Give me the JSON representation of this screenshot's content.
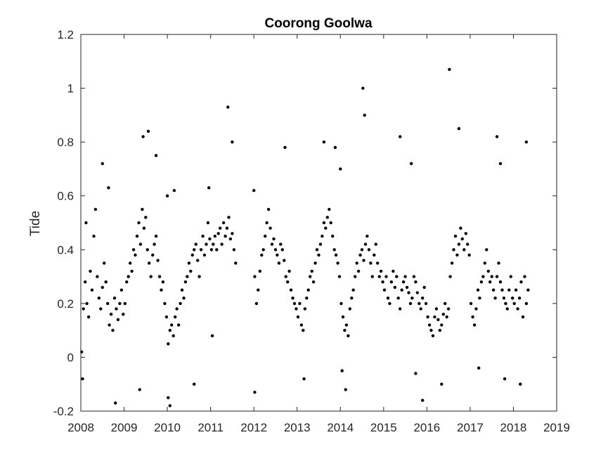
{
  "chart_data": {
    "type": "scatter",
    "title": "Coorong Goolwa",
    "xlabel": "",
    "ylabel": "Tide",
    "xlim": [
      2008,
      2019
    ],
    "ylim": [
      -0.2,
      1.2
    ],
    "x_ticks": [
      "2008",
      "2009",
      "2010",
      "2011",
      "2012",
      "2013",
      "2014",
      "2015",
      "2016",
      "2017",
      "2018",
      "2019"
    ],
    "y_ticks": [
      "-0.2",
      "0",
      "0.2",
      "0.4",
      "0.6",
      "0.8",
      "1",
      "1.2"
    ],
    "grid": false,
    "legend": "none",
    "marker_color": "#000000",
    "series": [
      {
        "x": [
          2008.02,
          2008.06,
          2008.1,
          2008.14,
          2008.18,
          2008.22,
          2008.26,
          2008.3,
          2008.34,
          2008.38,
          2008.42,
          2008.46,
          2008.5,
          2008.54,
          2008.58,
          2008.62,
          2008.66,
          2008.7,
          2008.74,
          2008.78,
          2008.82,
          2008.86,
          2008.9,
          2008.94,
          2008.98,
          2009.02,
          2009.06,
          2009.1,
          2009.14,
          2009.18,
          2009.22,
          2009.26,
          2009.3,
          2009.34,
          2009.38,
          2009.42,
          2009.46,
          2009.5,
          2009.54,
          2009.58,
          2009.62,
          2009.66,
          2009.7,
          2009.74,
          2009.78,
          2009.82,
          2009.86,
          2009.9,
          2009.94,
          2009.98,
          2010.02,
          2010.06,
          2010.1,
          2010.14,
          2010.18,
          2010.22,
          2010.26,
          2010.3,
          2010.34,
          2010.38,
          2010.42,
          2010.46,
          2010.5,
          2010.54,
          2010.58,
          2010.62,
          2010.66,
          2010.7,
          2010.74,
          2010.78,
          2010.82,
          2010.86,
          2010.9,
          2010.94,
          2010.98,
          2011.02,
          2011.06,
          2011.1,
          2011.14,
          2011.18,
          2011.22,
          2011.26,
          2011.3,
          2011.34,
          2011.38,
          2011.42,
          2011.46,
          2011.5,
          2011.54,
          2011.58,
          2012.02,
          2012.06,
          2012.1,
          2012.14,
          2012.18,
          2012.22,
          2012.26,
          2012.3,
          2012.34,
          2012.38,
          2012.42,
          2012.46,
          2012.5,
          2012.54,
          2012.58,
          2012.62,
          2012.66,
          2012.7,
          2012.74,
          2012.78,
          2012.82,
          2012.86,
          2012.9,
          2012.94,
          2012.98,
          2013.02,
          2013.06,
          2013.1,
          2013.14,
          2013.18,
          2013.22,
          2013.26,
          2013.3,
          2013.34,
          2013.38,
          2013.42,
          2013.46,
          2013.5,
          2013.54,
          2013.58,
          2013.62,
          2013.66,
          2013.7,
          2013.74,
          2013.78,
          2013.82,
          2013.86,
          2013.9,
          2013.94,
          2013.98,
          2014.02,
          2014.06,
          2014.1,
          2014.14,
          2014.18,
          2014.22,
          2014.26,
          2014.3,
          2014.34,
          2014.38,
          2014.42,
          2014.46,
          2014.5,
          2014.54,
          2014.58,
          2014.62,
          2014.66,
          2014.7,
          2014.74,
          2014.78,
          2014.82,
          2014.86,
          2014.9,
          2014.94,
          2014.98,
          2015.02,
          2015.06,
          2015.1,
          2015.14,
          2015.18,
          2015.22,
          2015.26,
          2015.3,
          2015.34,
          2015.38,
          2015.42,
          2015.46,
          2015.5,
          2015.54,
          2015.58,
          2015.62,
          2015.66,
          2015.7,
          2015.74,
          2015.78,
          2015.82,
          2015.86,
          2015.9,
          2015.94,
          2015.98,
          2016.02,
          2016.06,
          2016.1,
          2016.14,
          2016.18,
          2016.22,
          2016.26,
          2016.3,
          2016.34,
          2016.38,
          2016.42,
          2016.46,
          2016.5,
          2016.54,
          2016.58,
          2016.62,
          2016.66,
          2016.7,
          2016.74,
          2016.78,
          2016.82,
          2016.86,
          2016.9,
          2016.94,
          2016.98,
          2017.02,
          2017.06,
          2017.1,
          2017.14,
          2017.18,
          2017.22,
          2017.26,
          2017.3,
          2017.34,
          2017.38,
          2017.42,
          2017.46,
          2017.5,
          2017.54,
          2017.58,
          2017.62,
          2017.66,
          2017.7,
          2017.74,
          2017.78,
          2017.82,
          2017.86,
          2017.9,
          2017.94,
          2017.98,
          2018.02,
          2018.06,
          2018.1,
          2018.14,
          2018.18,
          2018.22,
          2018.26,
          2018.3,
          2018.34,
          2008.12,
          2008.5,
          2008.64,
          2009.44,
          2009.56,
          2009.74,
          2010.0,
          2010.16,
          2010.96,
          2011.4,
          2011.5,
          2012.0,
          2012.72,
          2013.62,
          2013.88,
          2014.0,
          2014.52,
          2014.56,
          2015.38,
          2015.64,
          2016.52,
          2016.74,
          2017.62,
          2017.7,
          2018.3,
          2008.04,
          2008.8,
          2009.36,
          2010.02,
          2010.06,
          2010.62,
          2011.04,
          2012.02,
          2013.16,
          2014.04,
          2014.12,
          2015.74,
          2015.9,
          2016.34,
          2017.2,
          2017.8,
          2018.16
        ],
        "y": [
          0.02,
          0.18,
          0.28,
          0.2,
          0.15,
          0.32,
          0.25,
          0.45,
          0.55,
          0.3,
          0.22,
          0.18,
          0.26,
          0.35,
          0.28,
          0.2,
          0.12,
          0.16,
          0.1,
          0.22,
          0.18,
          0.14,
          0.2,
          0.25,
          0.16,
          0.2,
          0.28,
          0.3,
          0.35,
          0.32,
          0.4,
          0.38,
          0.45,
          0.5,
          0.42,
          0.55,
          0.48,
          0.52,
          0.4,
          0.35,
          0.3,
          0.38,
          0.42,
          0.45,
          0.36,
          0.3,
          0.25,
          0.28,
          0.2,
          0.15,
          0.05,
          0.1,
          0.12,
          0.08,
          0.15,
          0.18,
          0.12,
          0.2,
          0.25,
          0.22,
          0.28,
          0.3,
          0.35,
          0.32,
          0.38,
          0.4,
          0.42,
          0.36,
          0.3,
          0.4,
          0.45,
          0.38,
          0.42,
          0.5,
          0.44,
          0.4,
          0.42,
          0.45,
          0.4,
          0.46,
          0.48,
          0.42,
          0.5,
          0.45,
          0.48,
          0.52,
          0.44,
          0.46,
          0.4,
          0.35,
          0.3,
          0.2,
          0.25,
          0.32,
          0.38,
          0.4,
          0.45,
          0.5,
          0.55,
          0.48,
          0.42,
          0.44,
          0.4,
          0.38,
          0.35,
          0.42,
          0.4,
          0.36,
          0.3,
          0.28,
          0.32,
          0.25,
          0.22,
          0.2,
          0.18,
          0.15,
          0.2,
          0.12,
          0.1,
          0.18,
          0.22,
          0.25,
          0.3,
          0.32,
          0.28,
          0.35,
          0.4,
          0.38,
          0.42,
          0.45,
          0.5,
          0.48,
          0.52,
          0.55,
          0.5,
          0.45,
          0.4,
          0.38,
          0.35,
          0.3,
          0.2,
          0.15,
          0.1,
          0.12,
          0.08,
          0.18,
          0.22,
          0.25,
          0.3,
          0.35,
          0.32,
          0.38,
          0.4,
          0.36,
          0.42,
          0.45,
          0.4,
          0.35,
          0.3,
          0.38,
          0.42,
          0.35,
          0.3,
          0.32,
          0.28,
          0.25,
          0.3,
          0.22,
          0.2,
          0.28,
          0.32,
          0.26,
          0.3,
          0.22,
          0.18,
          0.25,
          0.28,
          0.3,
          0.26,
          0.24,
          0.2,
          0.22,
          0.3,
          0.28,
          0.24,
          0.2,
          0.18,
          0.22,
          0.26,
          0.2,
          0.15,
          0.12,
          0.1,
          0.08,
          0.15,
          0.18,
          0.14,
          0.1,
          0.12,
          0.16,
          0.2,
          0.15,
          0.18,
          0.3,
          0.35,
          0.4,
          0.45,
          0.38,
          0.42,
          0.48,
          0.44,
          0.4,
          0.46,
          0.42,
          0.38,
          0.2,
          0.15,
          0.12,
          0.18,
          0.25,
          0.22,
          0.28,
          0.3,
          0.35,
          0.4,
          0.32,
          0.28,
          0.3,
          0.25,
          0.22,
          0.3,
          0.35,
          0.28,
          0.25,
          0.22,
          0.2,
          0.18,
          0.25,
          0.3,
          0.22,
          0.2,
          0.25,
          0.18,
          0.22,
          0.28,
          0.15,
          0.3,
          0.2,
          0.25,
          0.5,
          0.72,
          0.63,
          0.82,
          0.84,
          0.75,
          0.6,
          0.62,
          0.63,
          0.93,
          0.8,
          0.62,
          0.78,
          0.8,
          0.78,
          0.7,
          1.0,
          0.9,
          0.82,
          0.72,
          1.07,
          0.85,
          0.82,
          0.72,
          0.8,
          -0.08,
          -0.17,
          -0.12,
          -0.15,
          -0.18,
          -0.1,
          0.08,
          -0.13,
          -0.08,
          -0.05,
          -0.12,
          -0.06,
          -0.16,
          -0.1,
          -0.04,
          -0.08,
          -0.1
        ]
      }
    ]
  }
}
